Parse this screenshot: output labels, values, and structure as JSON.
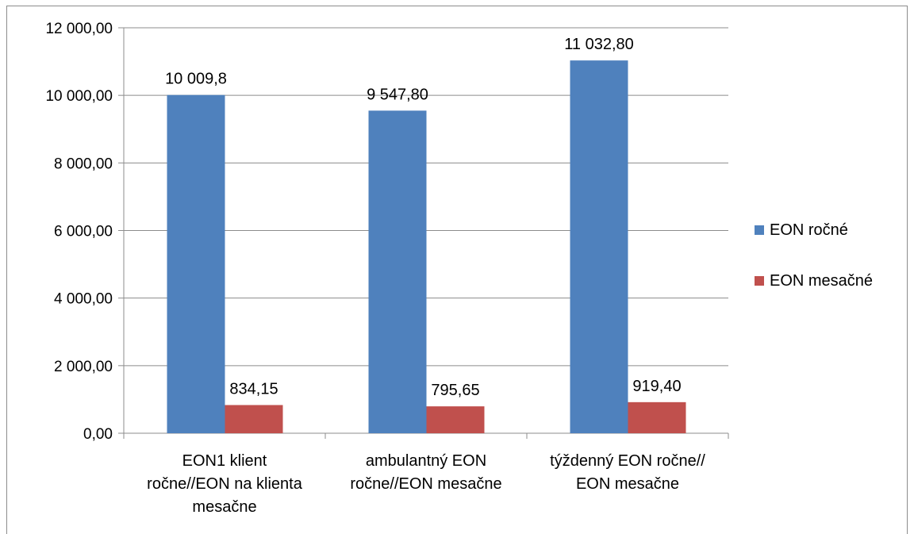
{
  "chart_data": {
    "type": "bar",
    "categories": [
      [
        "EON1 klient",
        "ročne//EON na klienta",
        "mesačne"
      ],
      [
        "ambulantný EON",
        "ročne//EON mesačne"
      ],
      [
        "týždenný EON ročne//",
        "EON mesačne"
      ]
    ],
    "series": [
      {
        "name": "EON ročné",
        "color": "#4f81bd",
        "values": [
          10009.8,
          9547.8,
          11032.8
        ],
        "labels": [
          "10 009,8",
          "9 547,80",
          "11 032,80"
        ]
      },
      {
        "name": "EON mesačné",
        "color": "#c0504d",
        "values": [
          834.15,
          795.65,
          919.4
        ],
        "labels": [
          "834,15",
          "795,65",
          "919,40"
        ]
      }
    ],
    "ylim": [
      0,
      12000
    ],
    "yticks": [
      0,
      2000,
      4000,
      6000,
      8000,
      10000,
      12000
    ],
    "ytick_labels": [
      "0,00",
      "2 000,00",
      "4 000,00",
      "6 000,00",
      "8 000,00",
      "10 000,00",
      "12 000,00"
    ],
    "grid": true,
    "legend": "right"
  }
}
